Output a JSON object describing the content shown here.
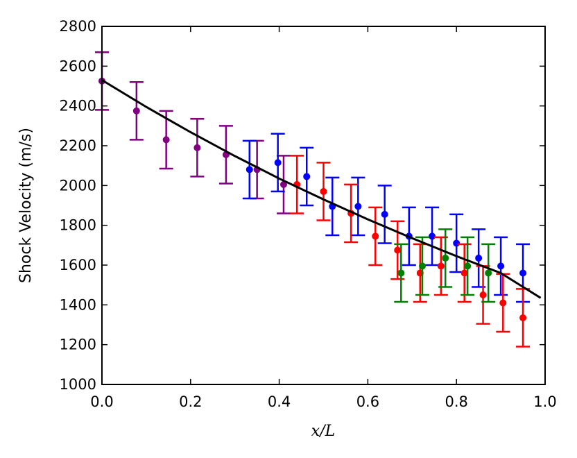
{
  "chart_data": {
    "type": "scatter",
    "title": "",
    "xlabel": "x/L",
    "ylabel": "Shock Velocity (m/s)",
    "xlim": [
      0.0,
      1.0
    ],
    "ylim": [
      1000,
      2800
    ],
    "x_ticks": [
      "0.0",
      "0.2",
      "0.4",
      "0.6",
      "0.8",
      "1.0"
    ],
    "y_ticks": [
      "1000",
      "1200",
      "1400",
      "1600",
      "1800",
      "2000",
      "2200",
      "2400",
      "2600",
      "2800"
    ],
    "grid": false,
    "legend": "none",
    "error": 145,
    "fit": {
      "color": "#000000",
      "x": [
        0.0,
        0.1,
        0.2,
        0.3,
        0.4,
        0.5,
        0.6,
        0.7,
        0.8,
        0.9,
        0.99
      ],
      "y": [
        2530,
        2395,
        2268,
        2148,
        2035,
        1930,
        1830,
        1735,
        1645,
        1560,
        1435
      ]
    },
    "series": [
      {
        "color": "#800080",
        "x": [
          0.0,
          0.078,
          0.145,
          0.215,
          0.28,
          0.35,
          0.41
        ],
        "y": [
          2525,
          2375,
          2230,
          2190,
          2155,
          2080,
          2005
        ]
      },
      {
        "color": "#0000ff",
        "x": [
          0.333,
          0.397,
          0.462,
          0.52,
          0.578,
          0.638,
          0.693,
          0.745,
          0.8,
          0.85,
          0.9,
          0.95
        ],
        "y": [
          2080,
          2115,
          2045,
          1895,
          1895,
          1855,
          1745,
          1745,
          1710,
          1635,
          1595,
          1560
        ]
      },
      {
        "color": "#ff0000",
        "x": [
          0.44,
          0.5,
          0.562,
          0.617,
          0.667,
          0.718,
          0.765,
          0.818,
          0.86,
          0.905,
          0.95
        ],
        "y": [
          2005,
          1970,
          1860,
          1745,
          1675,
          1560,
          1595,
          1560,
          1450,
          1410,
          1335
        ]
      },
      {
        "color": "#008000",
        "x": [
          0.675,
          0.723,
          0.775,
          0.825,
          0.872
        ],
        "y": [
          1560,
          1595,
          1635,
          1595,
          1560
        ]
      }
    ]
  }
}
